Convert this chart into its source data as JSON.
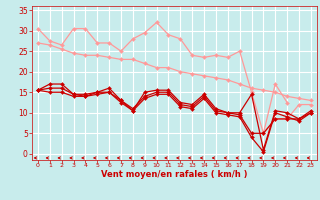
{
  "bg_color": "#c8ecec",
  "grid_color": "#ffffff",
  "xlabel": "Vent moyen/en rafales ( km/h )",
  "xlabel_color": "#cc0000",
  "tick_color": "#cc0000",
  "xlim": [
    -0.5,
    23.5
  ],
  "ylim": [
    -1.5,
    36
  ],
  "xticks": [
    0,
    1,
    2,
    3,
    4,
    5,
    6,
    7,
    8,
    9,
    10,
    11,
    12,
    13,
    14,
    15,
    16,
    17,
    18,
    19,
    20,
    21,
    22,
    23
  ],
  "yticks": [
    0,
    5,
    10,
    15,
    20,
    25,
    30,
    35
  ],
  "lines_dark": [
    {
      "x": [
        0,
        1,
        2,
        3,
        4,
        5,
        6,
        7,
        8,
        9,
        10,
        11,
        12,
        13,
        14,
        15,
        16,
        17,
        18,
        19,
        20,
        21,
        22,
        23
      ],
      "y": [
        15.5,
        17,
        17,
        14.5,
        14.5,
        15,
        16,
        13,
        10.5,
        15,
        15.5,
        15.5,
        12.5,
        12,
        14.5,
        11,
        10,
        10,
        14.5,
        1,
        10.5,
        10,
        8.5,
        10.5
      ]
    },
    {
      "x": [
        0,
        1,
        2,
        3,
        4,
        5,
        6,
        7,
        8,
        9,
        10,
        11,
        12,
        13,
        14,
        15,
        16,
        17,
        18,
        19,
        20,
        21,
        22,
        23
      ],
      "y": [
        15.5,
        16,
        16,
        14.5,
        14,
        15,
        15,
        13,
        11,
        14,
        15,
        15,
        12,
        11.5,
        14,
        10.5,
        10,
        9.5,
        5,
        5,
        8.5,
        8.5,
        8.5,
        10
      ]
    },
    {
      "x": [
        0,
        1,
        2,
        3,
        4,
        5,
        6,
        7,
        8,
        9,
        10,
        11,
        12,
        13,
        14,
        15,
        16,
        17,
        18,
        19,
        20,
        21,
        22,
        23
      ],
      "y": [
        15.5,
        15,
        15,
        14,
        14,
        14.5,
        15,
        12.5,
        10.5,
        13.5,
        14.5,
        14.5,
        11.5,
        11,
        13.5,
        10,
        9.5,
        9,
        4,
        0.5,
        10,
        9,
        8,
        10
      ]
    }
  ],
  "lines_light": [
    {
      "x": [
        0,
        1,
        2,
        3,
        4,
        5,
        6,
        7,
        8,
        9,
        10,
        11,
        12,
        13,
        14,
        15,
        16,
        17,
        18,
        19,
        20,
        21,
        22,
        23
      ],
      "y": [
        30.5,
        27.5,
        26.5,
        30.5,
        30.5,
        27,
        27,
        25,
        28,
        29.5,
        32,
        29,
        28,
        24,
        23.5,
        24,
        23.5,
        25,
        15,
        5,
        17,
        12.5,
        null,
        null
      ]
    },
    {
      "x": [
        0,
        1,
        2,
        3,
        4,
        5,
        6,
        7,
        8,
        9,
        10,
        11,
        12,
        13,
        14,
        15,
        16,
        17,
        18,
        19,
        20,
        21,
        22,
        23
      ],
      "y": [
        27,
        26.5,
        25.5,
        24.5,
        24,
        24,
        23.5,
        23,
        23,
        22,
        21,
        21,
        20,
        19.5,
        19,
        18.5,
        18,
        17,
        16,
        15.5,
        15,
        14,
        13.5,
        13
      ]
    },
    {
      "x": [
        0,
        1,
        2,
        3,
        4,
        5,
        6,
        7,
        8,
        9,
        10,
        11,
        12,
        13,
        14,
        15,
        16,
        17,
        18,
        19,
        20,
        21,
        22,
        23
      ],
      "y": [
        null,
        null,
        null,
        null,
        null,
        null,
        null,
        null,
        null,
        null,
        null,
        null,
        null,
        null,
        null,
        null,
        null,
        null,
        null,
        5,
        8.5,
        8.5,
        12,
        12
      ]
    }
  ],
  "dark_color": "#cc0000",
  "light_color": "#ff9999",
  "marker": "D",
  "markersize": 2.0,
  "linewidth": 0.9
}
